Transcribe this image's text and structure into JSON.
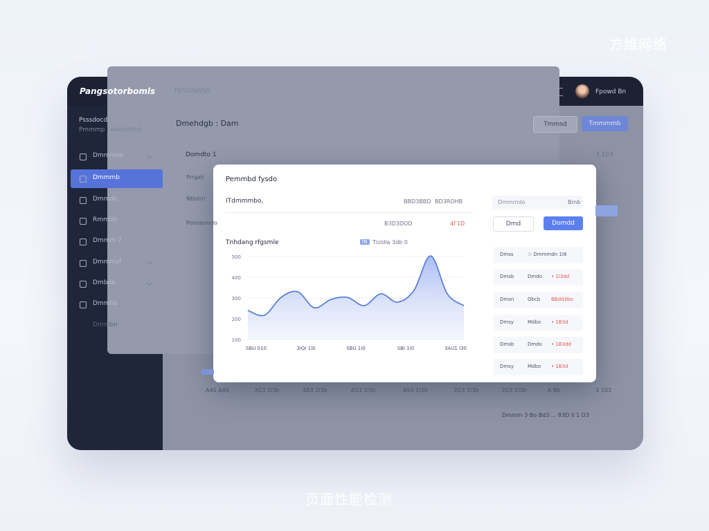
{
  "watermark": "方维网络",
  "caption": "页面性能检测",
  "app": {
    "brand": "Pangsotorbomls",
    "top_tab": "PESOINNSS",
    "user_name": "Fpowd  Bn",
    "sidebar_header": [
      "Psssdocd",
      "Pmmmp  I o4dssRnd"
    ],
    "nav": [
      "Dmmmoo",
      "Dmmmb",
      "Dmmdo",
      "Rmmbb",
      "Dmmm 7",
      "Dmmmzf",
      "Dmbdo",
      "Dmmbb",
      "Dmmbn"
    ],
    "page_title": "Dmehdgb : Dam",
    "btn_secondary": "Tmmsd",
    "btn_primary": "Tmmmmb",
    "panel_title": "Domdto 1",
    "panel_right": "3 103",
    "left_rows": [
      "Prrgxh",
      "Ntbmri",
      "Pomdomdo"
    ],
    "bottom_labels": [
      "A4S A4S",
      "3G3 1I3b",
      "4A3 1I3b",
      "A53 1I3b",
      "A5S 1I3b",
      "3G3 1I3b",
      "3G3 1I3b",
      "A Bb",
      "3 103"
    ],
    "footer": "Dmmm 3 Bo  Bd3 ... 83D   Il   1 D3"
  },
  "modal": {
    "title": "Pemmbd fysdo",
    "summary_label": "ITdmmmbo,",
    "summary_mid": "BBD3BBD",
    "summary_right": "BD3ROHB",
    "sub_value": "B3D3DOD",
    "sub_alert": "4Г1D",
    "select_label": "Dmmmdo",
    "select_value": "Bmb",
    "btn_secondary": "Dmd",
    "btn_primary": "Domdd",
    "rows": [
      [
        "Dmss",
        "☆ Dmmmdn 1I8",
        ""
      ],
      [
        "Dmsb",
        "Dmdo",
        "• 1I3dd"
      ],
      [
        "Dmsn",
        "Obcb",
        "BBdd3bo"
      ],
      [
        "Dmsy",
        "Mdbo",
        "• 1B3d"
      ],
      [
        "Dmsb",
        "Dmdo",
        "• 1B3dd"
      ],
      [
        "Dmsy",
        "Mdbo",
        "• 1B3d"
      ]
    ],
    "chart": {
      "type": "area",
      "title": "Tnhdang rfgsmle",
      "legend_label": "Tisldla 3db  0",
      "x": [
        0,
        1,
        2,
        3,
        4,
        5,
        6,
        7,
        8,
        9,
        10,
        11,
        12,
        13
      ],
      "series": [
        {
          "name": "?B",
          "color": "#5b7fd8",
          "values": [
            240,
            217,
            303,
            330,
            253,
            293,
            303,
            263,
            320,
            280,
            337,
            503,
            320,
            263
          ]
        }
      ],
      "xlim": [
        0,
        13
      ],
      "xticks": [
        {
          "value": 0.5,
          "label": "SBU 010"
        },
        {
          "value": 3.5,
          "label": "3IQI 1I0"
        },
        {
          "value": 6.5,
          "label": "SBU 1I0"
        },
        {
          "value": 9.5,
          "label": "SBI 1I0"
        },
        {
          "value": 12.5,
          "label": "3AU1 I30"
        }
      ],
      "ylim": [
        100,
        520
      ],
      "yticks": [
        500,
        400,
        300,
        200,
        100
      ],
      "grid": true
    }
  }
}
